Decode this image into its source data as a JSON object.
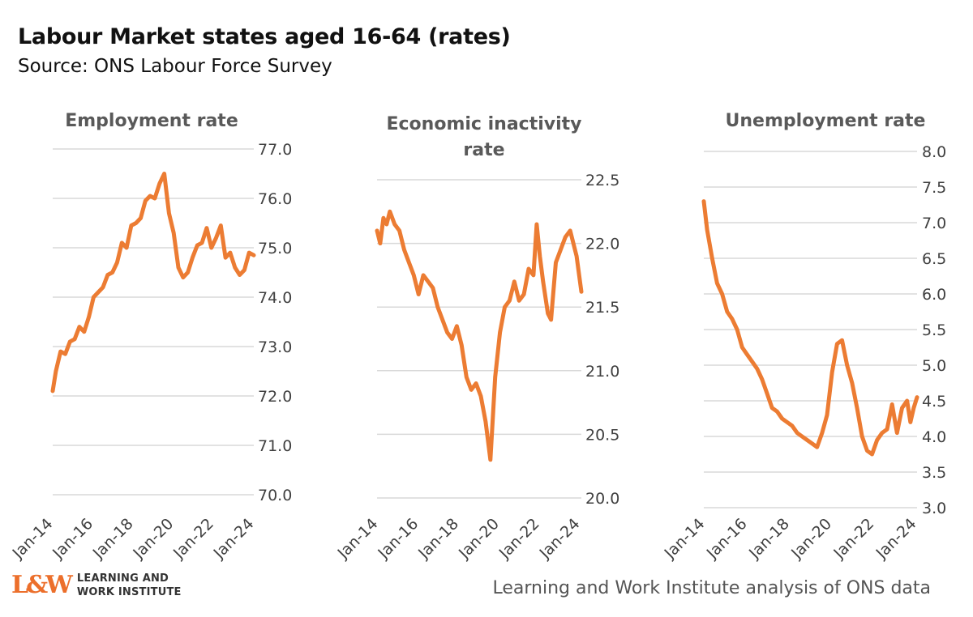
{
  "title": "Labour Market states aged 16-64 (rates)",
  "subtitle": "Source: ONS Labour Force Survey",
  "logo": {
    "mark": "L&W",
    "line1": "LEARNING AND",
    "line2": "WORK INSTITUTE"
  },
  "footer": "Learning and Work Institute analysis of ONS data",
  "colors": {
    "line": "#ec7c33",
    "grid": "#d9d9d9",
    "title_text": "#595959",
    "axis_text": "#404040"
  },
  "chart_data": [
    {
      "type": "line",
      "title": "Employment rate",
      "x_tick_labels": [
        "Jan-14",
        "Jan-16",
        "Jan-18",
        "Jan-20",
        "Jan-22",
        "Jan-24"
      ],
      "x_range": [
        "Jan-14",
        "Sep-24"
      ],
      "ylim": [
        70.0,
        77.0
      ],
      "y_ticks": [
        "77.0",
        "76.0",
        "75.0",
        "74.0",
        "73.0",
        "72.0",
        "71.0",
        "70.0"
      ],
      "grid": true,
      "series": [
        {
          "points": [
            [
              "Jan-14",
              72.1
            ],
            [
              "Mar-14",
              72.5
            ],
            [
              "Jun-14",
              72.9
            ],
            [
              "Sep-14",
              72.85
            ],
            [
              "Dec-14",
              73.1
            ],
            [
              "Mar-15",
              73.15
            ],
            [
              "Jun-15",
              73.4
            ],
            [
              "Sep-15",
              73.3
            ],
            [
              "Dec-15",
              73.6
            ],
            [
              "Mar-16",
              74.0
            ],
            [
              "Jun-16",
              74.1
            ],
            [
              "Sep-16",
              74.2
            ],
            [
              "Dec-16",
              74.45
            ],
            [
              "Mar-17",
              74.5
            ],
            [
              "Jun-17",
              74.7
            ],
            [
              "Sep-17",
              75.1
            ],
            [
              "Dec-17",
              75.0
            ],
            [
              "Mar-18",
              75.45
            ],
            [
              "Jun-18",
              75.5
            ],
            [
              "Sep-18",
              75.6
            ],
            [
              "Dec-18",
              75.95
            ],
            [
              "Mar-19",
              76.05
            ],
            [
              "Jun-19",
              76.0
            ],
            [
              "Sep-19",
              76.3
            ],
            [
              "Dec-19",
              76.5
            ],
            [
              "Mar-20",
              75.7
            ],
            [
              "Jun-20",
              75.3
            ],
            [
              "Sep-20",
              74.6
            ],
            [
              "Dec-20",
              74.4
            ],
            [
              "Mar-21",
              74.5
            ],
            [
              "Jun-21",
              74.8
            ],
            [
              "Sep-21",
              75.05
            ],
            [
              "Dec-21",
              75.1
            ],
            [
              "Mar-22",
              75.4
            ],
            [
              "Jun-22",
              75.0
            ],
            [
              "Sep-22",
              75.2
            ],
            [
              "Dec-22",
              75.45
            ],
            [
              "Mar-23",
              74.8
            ],
            [
              "Jun-23",
              74.9
            ],
            [
              "Sep-23",
              74.6
            ],
            [
              "Dec-23",
              74.45
            ],
            [
              "Mar-24",
              74.55
            ],
            [
              "Jun-24",
              74.9
            ],
            [
              "Sep-24",
              74.85
            ]
          ]
        }
      ]
    },
    {
      "type": "line",
      "title": "Economic inactivity rate",
      "x_tick_labels": [
        "Jan-14",
        "Jan-16",
        "Jan-18",
        "Jan-20",
        "Jan-22",
        "Jan-24"
      ],
      "x_range": [
        "Jan-14",
        "Sep-24"
      ],
      "ylim": [
        20.0,
        22.5
      ],
      "y_ticks": [
        "22.5",
        "22.0",
        "21.5",
        "21.0",
        "20.5",
        "20.0"
      ],
      "grid": true,
      "series": [
        {
          "points": [
            [
              "Jan-14",
              22.1
            ],
            [
              "Mar-14",
              22.0
            ],
            [
              "May-14",
              22.2
            ],
            [
              "Jul-14",
              22.15
            ],
            [
              "Sep-14",
              22.25
            ],
            [
              "Dec-14",
              22.15
            ],
            [
              "Mar-15",
              22.1
            ],
            [
              "Jun-15",
              21.95
            ],
            [
              "Sep-15",
              21.85
            ],
            [
              "Dec-15",
              21.75
            ],
            [
              "Mar-16",
              21.6
            ],
            [
              "Jun-16",
              21.75
            ],
            [
              "Sep-16",
              21.7
            ],
            [
              "Dec-16",
              21.65
            ],
            [
              "Mar-17",
              21.5
            ],
            [
              "Jun-17",
              21.4
            ],
            [
              "Sep-17",
              21.3
            ],
            [
              "Dec-17",
              21.25
            ],
            [
              "Mar-18",
              21.35
            ],
            [
              "Jun-18",
              21.2
            ],
            [
              "Sep-18",
              20.95
            ],
            [
              "Dec-18",
              20.85
            ],
            [
              "Mar-19",
              20.9
            ],
            [
              "Jun-19",
              20.8
            ],
            [
              "Sep-19",
              20.6
            ],
            [
              "Dec-19",
              20.3
            ],
            [
              "Mar-20",
              20.95
            ],
            [
              "Jun-20",
              21.3
            ],
            [
              "Sep-20",
              21.5
            ],
            [
              "Dec-20",
              21.55
            ],
            [
              "Mar-21",
              21.7
            ],
            [
              "Jun-21",
              21.55
            ],
            [
              "Sep-21",
              21.6
            ],
            [
              "Dec-21",
              21.8
            ],
            [
              "Mar-22",
              21.75
            ],
            [
              "May-22",
              22.15
            ],
            [
              "Jul-22",
              21.9
            ],
            [
              "Sep-22",
              21.7
            ],
            [
              "Dec-22",
              21.45
            ],
            [
              "Feb-23",
              21.4
            ],
            [
              "May-23",
              21.85
            ],
            [
              "Aug-23",
              21.95
            ],
            [
              "Nov-23",
              22.05
            ],
            [
              "Feb-24",
              22.1
            ],
            [
              "Jun-24",
              21.9
            ],
            [
              "Sep-24",
              21.62
            ]
          ]
        }
      ]
    },
    {
      "type": "line",
      "title": "Unemployment rate",
      "x_tick_labels": [
        "Jan-14",
        "Jan-16",
        "Jan-18",
        "Jan-20",
        "Jan-22",
        "Jan-24"
      ],
      "x_range": [
        "Jan-14",
        "Sep-24"
      ],
      "ylim": [
        3.0,
        8.0
      ],
      "y_ticks": [
        "8.0",
        "7.5",
        "7.0",
        "6.5",
        "6.0",
        "5.5",
        "5.0",
        "4.5",
        "4.0",
        "3.5",
        "3.0"
      ],
      "grid": true,
      "series": [
        {
          "points": [
            [
              "Jan-14",
              7.3
            ],
            [
              "Mar-14",
              6.9
            ],
            [
              "Jun-14",
              6.5
            ],
            [
              "Sep-14",
              6.15
            ],
            [
              "Dec-14",
              6.0
            ],
            [
              "Mar-15",
              5.75
            ],
            [
              "Jun-15",
              5.65
            ],
            [
              "Sep-15",
              5.5
            ],
            [
              "Dec-15",
              5.25
            ],
            [
              "Mar-16",
              5.15
            ],
            [
              "Jun-16",
              5.05
            ],
            [
              "Sep-16",
              4.95
            ],
            [
              "Dec-16",
              4.8
            ],
            [
              "Mar-17",
              4.6
            ],
            [
              "Jun-17",
              4.4
            ],
            [
              "Sep-17",
              4.35
            ],
            [
              "Dec-17",
              4.25
            ],
            [
              "Mar-18",
              4.2
            ],
            [
              "Jun-18",
              4.15
            ],
            [
              "Sep-18",
              4.05
            ],
            [
              "Dec-18",
              4.0
            ],
            [
              "Mar-19",
              3.95
            ],
            [
              "Jun-19",
              3.9
            ],
            [
              "Sep-19",
              3.85
            ],
            [
              "Dec-19",
              4.05
            ],
            [
              "Mar-20",
              4.3
            ],
            [
              "Jun-20",
              4.9
            ],
            [
              "Sep-20",
              5.3
            ],
            [
              "Dec-20",
              5.35
            ],
            [
              "Mar-21",
              5.0
            ],
            [
              "Jun-21",
              4.75
            ],
            [
              "Sep-21",
              4.4
            ],
            [
              "Dec-21",
              4.0
            ],
            [
              "Mar-22",
              3.8
            ],
            [
              "Jun-22",
              3.75
            ],
            [
              "Sep-22",
              3.95
            ],
            [
              "Dec-22",
              4.05
            ],
            [
              "Mar-23",
              4.1
            ],
            [
              "Jun-23",
              4.45
            ],
            [
              "Sep-23",
              4.05
            ],
            [
              "Dec-23",
              4.4
            ],
            [
              "Mar-24",
              4.5
            ],
            [
              "May-24",
              4.2
            ],
            [
              "Jul-24",
              4.4
            ],
            [
              "Sep-24",
              4.55
            ]
          ]
        }
      ]
    }
  ]
}
